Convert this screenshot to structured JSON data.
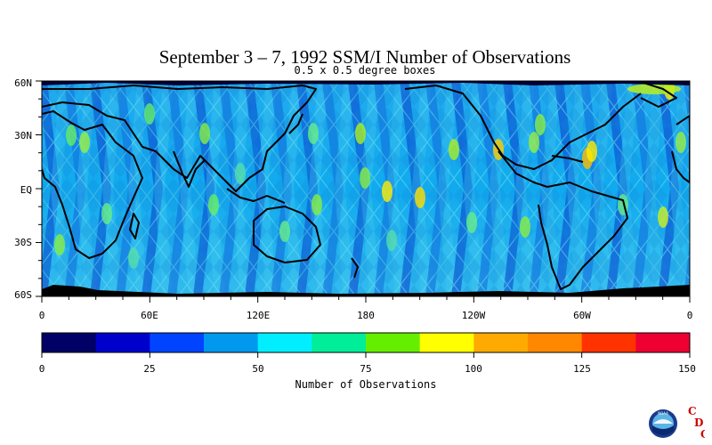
{
  "title": "September 3 – 7, 1992 SSM/I Number of Observations",
  "subtitle": "0.5 x 0.5 degree boxes",
  "lat_labels": [
    "60N",
    "30N",
    "EQ",
    "30S",
    "60S"
  ],
  "lon_labels": [
    "0",
    "60E",
    "120E",
    "180",
    "120W",
    "60W",
    "0"
  ],
  "colorbar": {
    "title": "Number of Observations",
    "tick_labels": [
      "0",
      "25",
      "50",
      "75",
      "100",
      "125",
      "150"
    ],
    "colors": [
      "#000066",
      "#0000cc",
      "#0044ff",
      "#0099ee",
      "#00eeff",
      "#00ee99",
      "#66ee00",
      "#ffff00",
      "#ffaa00",
      "#ff8800",
      "#ff3300",
      "#ee0033"
    ]
  },
  "logo": {
    "letters": [
      "C",
      "D",
      "C"
    ],
    "emblem": "NOAA",
    "color": "#cc0000"
  },
  "icons": {
    "logo": "noaa-emblem-icon"
  }
}
